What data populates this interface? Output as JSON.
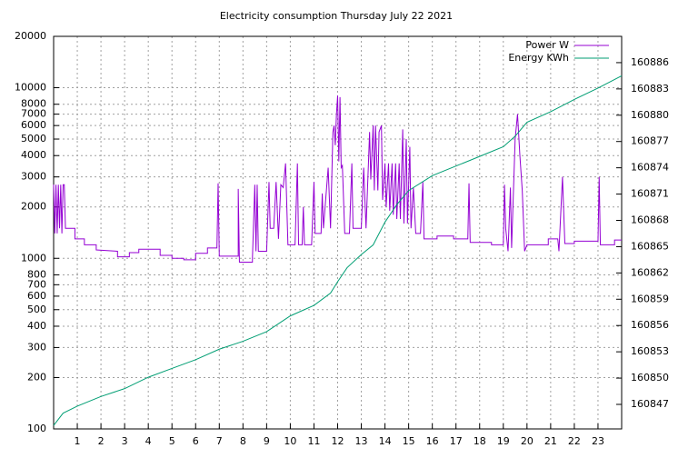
{
  "chart_data": {
    "type": "line",
    "title": "Electricity consumption Thursday July 22 2021",
    "xlim": [
      0,
      24
    ],
    "xticks": [
      1,
      2,
      3,
      4,
      5,
      6,
      7,
      8,
      9,
      10,
      11,
      12,
      13,
      14,
      15,
      16,
      17,
      18,
      19,
      20,
      21,
      22,
      23
    ],
    "ylim": [
      100,
      20000
    ],
    "ylog": true,
    "yticks": [
      100,
      200,
      300,
      400,
      500,
      600,
      700,
      800,
      1000,
      2000,
      3000,
      4000,
      5000,
      6000,
      7000,
      8000,
      10000,
      20000
    ],
    "y2lim": [
      160844.2,
      160889
    ],
    "y2ticks": [
      160847,
      160850,
      160853,
      160856,
      160859,
      160862,
      160865,
      160868,
      160871,
      160874,
      160877,
      160880,
      160883,
      160886
    ],
    "grid": true,
    "legend": "top-right",
    "series": [
      {
        "name": "Power W",
        "color": "#9400d3",
        "x": [
          0,
          0.05,
          0.1,
          0.15,
          0.2,
          0.25,
          0.3,
          0.35,
          0.4,
          0.45,
          0.5,
          0.9,
          0.9,
          1.3,
          1.3,
          1.8,
          1.8,
          2.7,
          2.7,
          3.2,
          3.2,
          3.6,
          3.6,
          4.5,
          4.5,
          5.0,
          5.0,
          5.5,
          5.5,
          6.0,
          6.0,
          6.5,
          6.5,
          6.9,
          6.95,
          7.0,
          7.8,
          7.8,
          7.85,
          8.4,
          8.4,
          8.5,
          8.55,
          8.6,
          8.65,
          9.0,
          9.1,
          9.15,
          9.3,
          9.4,
          9.5,
          9.6,
          9.7,
          9.8,
          9.9,
          10.2,
          10.3,
          10.35,
          10.5,
          10.55,
          10.6,
          10.9,
          11.0,
          11.05,
          11.3,
          11.35,
          11.4,
          11.6,
          11.7,
          11.8,
          11.85,
          11.9,
          11.95,
          12.0,
          12.05,
          12.1,
          12.15,
          12.2,
          12.3,
          12.5,
          12.6,
          12.65,
          13.0,
          13.1,
          13.2,
          13.35,
          13.4,
          13.5,
          13.55,
          13.6,
          13.7,
          13.75,
          13.85,
          13.9,
          14.0,
          14.05,
          14.15,
          14.2,
          14.3,
          14.35,
          14.45,
          14.5,
          14.6,
          14.65,
          14.75,
          14.8,
          14.9,
          14.95,
          15.05,
          15.1,
          15.2,
          15.3,
          15.5,
          15.6,
          15.65,
          16.2,
          16.2,
          16.9,
          16.9,
          17.5,
          17.55,
          17.6,
          18.5,
          18.5,
          19.0,
          19.05,
          19.1,
          19.2,
          19.3,
          19.35,
          19.5,
          19.6,
          19.7,
          19.8,
          19.9,
          20.0,
          20.9,
          20.9,
          21.3,
          21.35,
          21.5,
          21.6,
          22.0,
          22.0,
          23.0,
          23.05,
          23.1,
          23.7,
          23.7,
          24
        ],
        "values": [
          2700,
          1400,
          2700,
          1400,
          2700,
          1500,
          2700,
          1400,
          2700,
          2700,
          1500,
          1500,
          1300,
          1300,
          1200,
          1200,
          1120,
          1100,
          1020,
          1020,
          1080,
          1080,
          1130,
          1130,
          1040,
          1040,
          1000,
          1000,
          980,
          980,
          1070,
          1070,
          1150,
          1150,
          2750,
          1030,
          1030,
          2550,
          950,
          950,
          1000,
          2700,
          1100,
          2700,
          1100,
          1100,
          2800,
          1500,
          1500,
          2800,
          1300,
          2700,
          2600,
          3600,
          1200,
          1200,
          3600,
          1200,
          1200,
          2000,
          1200,
          1200,
          2800,
          1400,
          1400,
          2400,
          1500,
          3400,
          1500,
          5500,
          6000,
          4600,
          7000,
          9000,
          3700,
          8800,
          3400,
          3500,
          1400,
          1400,
          3600,
          1500,
          1500,
          3400,
          1500,
          5500,
          2900,
          6000,
          2500,
          6000,
          2500,
          5500,
          6000,
          2200,
          3600,
          2000,
          3600,
          1900,
          3600,
          1800,
          3600,
          1700,
          3600,
          1700,
          5700,
          1600,
          5000,
          1600,
          4500,
          1500,
          2600,
          1400,
          1400,
          2800,
          1300,
          1300,
          1350,
          1350,
          1300,
          1300,
          2750,
          1240,
          1240,
          1200,
          1200,
          2700,
          1500,
          1100,
          2600,
          1150,
          5000,
          7000,
          4000,
          2500,
          1100,
          1200,
          1200,
          1300,
          1300,
          1100,
          3000,
          1220,
          1220,
          1260,
          1260,
          3000,
          1200,
          1200,
          1280,
          1280
        ]
      },
      {
        "name": "Energy KWh",
        "color": "#009e73",
        "axis": "y2",
        "x": [
          0,
          0.4,
          1,
          2,
          3,
          4,
          5,
          6,
          7,
          8,
          9,
          10,
          11,
          11.7,
          12,
          12.4,
          13,
          13.5,
          14,
          14.5,
          15,
          16,
          17,
          18,
          19,
          19.5,
          20,
          21,
          22,
          23,
          24
        ],
        "values": [
          160844.6,
          160846,
          160846.8,
          160847.9,
          160848.8,
          160850.1,
          160851.1,
          160852.1,
          160853.3,
          160854.2,
          160855.3,
          160857.1,
          160858.3,
          160859.7,
          160861,
          160862.6,
          160864.1,
          160865.2,
          160867.8,
          160869.8,
          160871.4,
          160873.1,
          160874.2,
          160875.3,
          160876.4,
          160877.6,
          160879.2,
          160880.4,
          160881.8,
          160883.1,
          160884.5
        ]
      }
    ]
  }
}
